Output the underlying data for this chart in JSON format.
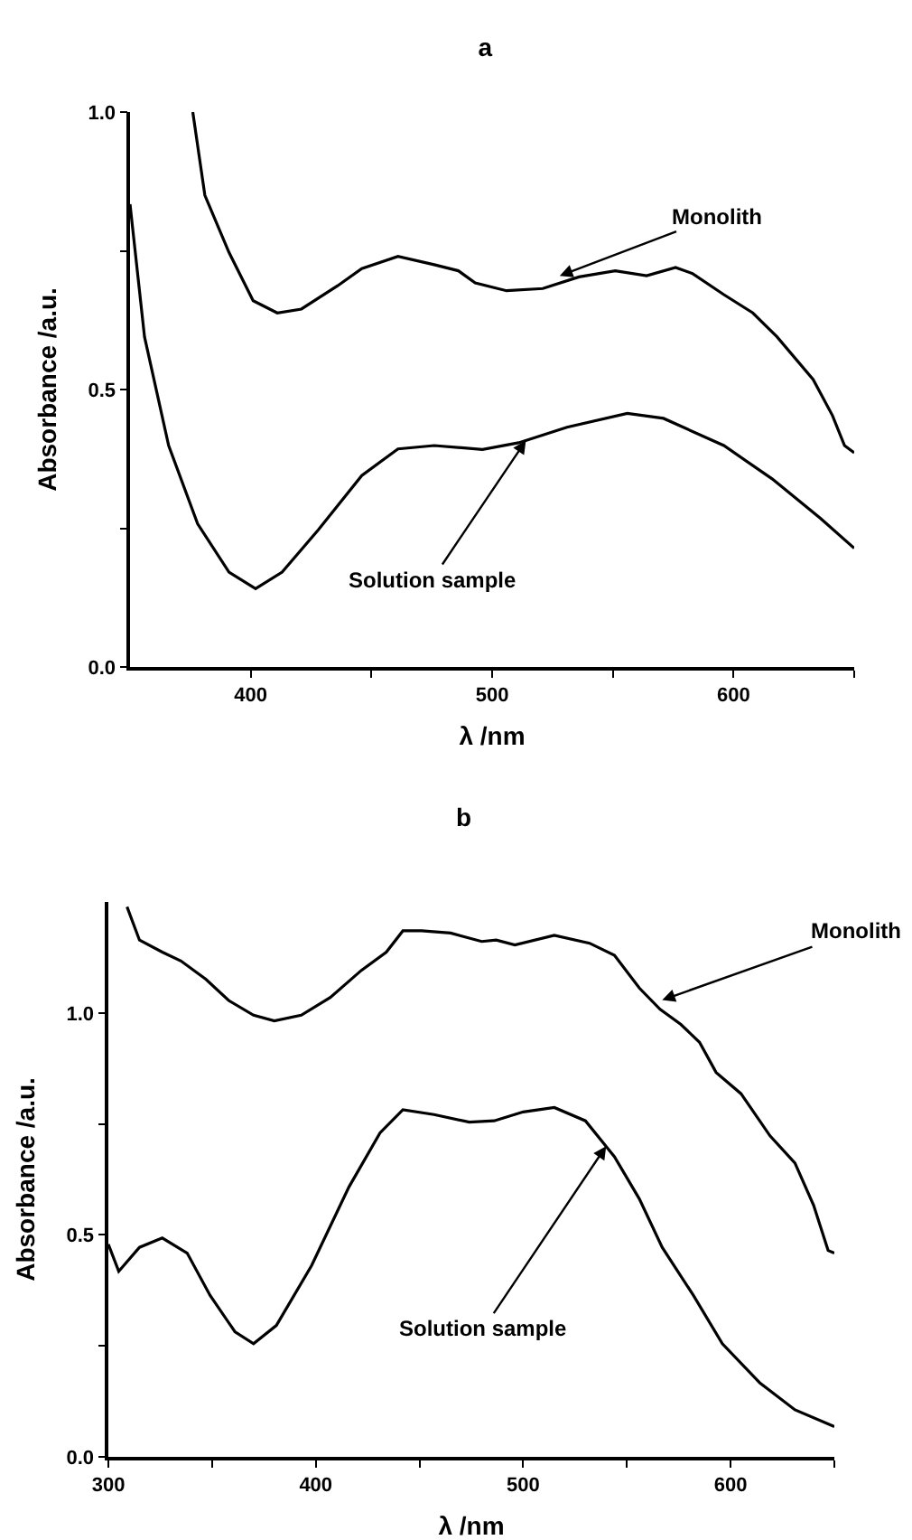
{
  "chart_data": [
    {
      "type": "line",
      "title": "a",
      "xlabel": "λ /nm",
      "ylabel": "Absorbance /a.u.",
      "xlim": [
        350,
        650
      ],
      "xticks": [
        {
          "value": 400,
          "label": "400"
        },
        {
          "value": 450,
          "label": null
        },
        {
          "value": 500,
          "label": "500"
        },
        {
          "value": 550,
          "label": null
        },
        {
          "value": 600,
          "label": "600"
        },
        {
          "value": 650,
          "label": null
        }
      ],
      "ylim": [
        0,
        1
      ],
      "yticks": [
        {
          "value": 0,
          "label": "0.0"
        },
        {
          "value": 0.25,
          "label": null
        },
        {
          "value": 0.5,
          "label": "0.5"
        },
        {
          "value": 0.75,
          "label": null
        },
        {
          "value": 1,
          "label": "1.0"
        }
      ],
      "series": [
        {
          "color": "#000000",
          "x": [
            376,
            381,
            391,
            401,
            411,
            421,
            436,
            446,
            461,
            476,
            486,
            493,
            506,
            521,
            536,
            551,
            564,
            576,
            583,
            596,
            608,
            618,
            633,
            641,
            646,
            650
          ],
          "values": [
            1.0,
            0.85,
            0.747,
            0.66,
            0.638,
            0.645,
            0.687,
            0.718,
            0.74,
            0.725,
            0.714,
            0.692,
            0.678,
            0.682,
            0.703,
            0.714,
            0.705,
            0.72,
            0.709,
            0.671,
            0.638,
            0.595,
            0.518,
            0.453,
            0.399,
            0.386
          ]
        },
        {
          "color": "#000000",
          "x": [
            350,
            356,
            366,
            378,
            391,
            402,
            413,
            428,
            446,
            461,
            476,
            496,
            511,
            531,
            556,
            571,
            596,
            616,
            636,
            650
          ],
          "values": [
            0.834,
            0.595,
            0.399,
            0.258,
            0.171,
            0.141,
            0.171,
            0.247,
            0.345,
            0.393,
            0.399,
            0.392,
            0.404,
            0.432,
            0.457,
            0.448,
            0.399,
            0.339,
            0.268,
            0.214
          ]
        }
      ],
      "annotations": [
        {
          "text": "Monolith",
          "x": 528,
          "y": 0.705
        },
        {
          "text": "Solution sample",
          "x": 514,
          "y": 0.408
        }
      ]
    },
    {
      "type": "line",
      "title": "b",
      "xlabel": "λ /nm",
      "ylabel": "Absorbance /a.u.",
      "xlim": [
        300,
        650
      ],
      "xticks": [
        {
          "value": 300,
          "label": "300"
        },
        {
          "value": 350,
          "label": null
        },
        {
          "value": 400,
          "label": "400"
        },
        {
          "value": 450,
          "label": null
        },
        {
          "value": 500,
          "label": "500"
        },
        {
          "value": 550,
          "label": null
        },
        {
          "value": 600,
          "label": "600"
        },
        {
          "value": 650,
          "label": null
        }
      ],
      "ylim": [
        0,
        1.25
      ],
      "yticks": [
        {
          "value": 0,
          "label": "0.0"
        },
        {
          "value": 0.25,
          "label": null
        },
        {
          "value": 0.5,
          "label": "0.5"
        },
        {
          "value": 0.75,
          "label": null
        },
        {
          "value": 1,
          "label": "1.0"
        }
      ],
      "series": [
        {
          "color": "#000000",
          "x": [
            309,
            315,
            326,
            335,
            347,
            358,
            370,
            380,
            393,
            407,
            422,
            434,
            442,
            451,
            465,
            480,
            487,
            496,
            515,
            532,
            544,
            556,
            566,
            576,
            585,
            593,
            605,
            619,
            631,
            640,
            647,
            650
          ],
          "values": [
            1.239,
            1.164,
            1.137,
            1.117,
            1.076,
            1.028,
            0.995,
            0.982,
            0.995,
            1.035,
            1.096,
            1.137,
            1.185,
            1.185,
            1.18,
            1.161,
            1.164,
            1.153,
            1.175,
            1.157,
            1.13,
            1.056,
            1.008,
            0.974,
            0.934,
            0.866,
            0.818,
            0.723,
            0.662,
            0.567,
            0.465,
            0.459
          ]
        },
        {
          "color": "#000000",
          "x": [
            300,
            305,
            315,
            326,
            338,
            349,
            361,
            370,
            381,
            398,
            416,
            431,
            442,
            457,
            474,
            486,
            500,
            515,
            530,
            544,
            556,
            567,
            582,
            596,
            614,
            631,
            650
          ],
          "values": [
            0.479,
            0.418,
            0.472,
            0.493,
            0.459,
            0.364,
            0.282,
            0.255,
            0.296,
            0.431,
            0.608,
            0.73,
            0.782,
            0.771,
            0.754,
            0.757,
            0.777,
            0.787,
            0.757,
            0.676,
            0.581,
            0.472,
            0.364,
            0.255,
            0.167,
            0.106,
            0.068
          ]
        }
      ],
      "annotations": [
        {
          "text": "Monolith",
          "x": 567,
          "y": 1.029
        },
        {
          "text": "Solution sample",
          "x": 540,
          "y": 0.7
        }
      ]
    }
  ]
}
